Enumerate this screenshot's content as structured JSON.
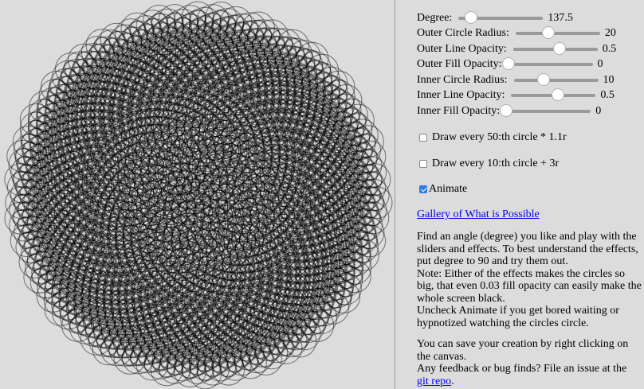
{
  "controls": [
    {
      "label": "Degree:",
      "value": "137.5"
    },
    {
      "label": "Outer Circle Radius:",
      "value": "20"
    },
    {
      "label": "Outer Line Opacity:",
      "value": "0.5"
    },
    {
      "label": "Outer Fill Opacity:",
      "value": "0"
    },
    {
      "label": "Inner Circle Radius:",
      "value": "10"
    },
    {
      "label": "Inner Line Opacity:",
      "value": "0.5"
    },
    {
      "label": "Inner Fill Opacity:",
      "value": "0"
    }
  ],
  "checkboxes": [
    {
      "label": "Draw every 50:th circle * 1.1r",
      "checked": false
    },
    {
      "label": "Draw every 10:th circle + 3r",
      "checked": false
    },
    {
      "label": "Animate",
      "checked": true
    }
  ],
  "gallery_link": "Gallery of What is Possible",
  "help": [
    "Find an angle (degree) you like and play with the sliders and effects. To best understand the effects, put degree to 90 and try them out.",
    "Note: Either of the effects makes the circles so big, that even 0.03 fill opacity can easily make the whole screen black.",
    "Uncheck Animate if you get bored waiting or hypnotized watching the circles circle."
  ],
  "footer": {
    "save_note": "You can save your creation by right clicking on the canvas.",
    "feedback": "Any feedback or bug finds? File an issue at the",
    "repo_link": "git repo",
    "end": "."
  }
}
